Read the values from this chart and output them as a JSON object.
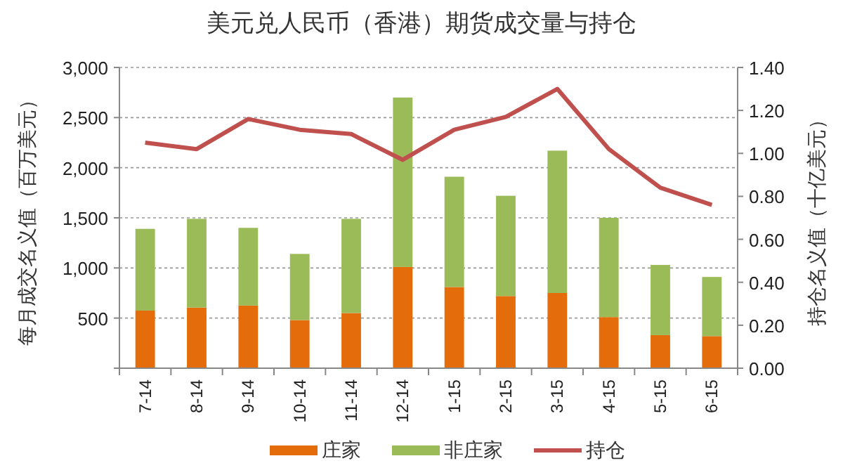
{
  "chart_data": {
    "type": "bar",
    "title": "美元兑人民币（香港）期货成交量与持仓",
    "ylabel": "每月成交名义值（百万美元）",
    "y2label": "持仓名义值（十亿美元）",
    "categories": [
      "7-14",
      "8-14",
      "9-14",
      "10-14",
      "11-14",
      "12-14",
      "1-15",
      "2-15",
      "3-15",
      "4-15",
      "5-15",
      "6-15"
    ],
    "stacked": true,
    "series": [
      {
        "name": "庄家",
        "color": "#e46c0a",
        "values": [
          575,
          605,
          625,
          480,
          550,
          1010,
          810,
          720,
          750,
          510,
          330,
          320
        ]
      },
      {
        "name": "非庄家",
        "color": "#9bbb59",
        "values": [
          815,
          885,
          775,
          660,
          940,
          1690,
          1100,
          1000,
          1420,
          990,
          700,
          590
        ]
      },
      {
        "name": "持仓",
        "color": "#c0504d",
        "type": "line",
        "axis": "y2",
        "values": [
          1.05,
          1.02,
          1.16,
          1.11,
          1.09,
          0.97,
          1.11,
          1.17,
          1.3,
          1.02,
          0.84,
          0.76
        ]
      }
    ],
    "ylim": [
      0,
      3000
    ],
    "yticks": [
      {
        "value": 0,
        "label": null
      },
      {
        "value": 500,
        "label": "500"
      },
      {
        "value": 1000,
        "label": "1,000"
      },
      {
        "value": 1500,
        "label": "1,500"
      },
      {
        "value": 2000,
        "label": "2,000"
      },
      {
        "value": 2500,
        "label": "2,500"
      },
      {
        "value": 3000,
        "label": "3,000"
      }
    ],
    "y2lim": [
      0,
      1.4
    ],
    "y2ticks": [
      {
        "value": 0,
        "label": "0.00"
      },
      {
        "value": 0.2,
        "label": "0.20"
      },
      {
        "value": 0.4,
        "label": "0.40"
      },
      {
        "value": 0.6,
        "label": "0.60"
      },
      {
        "value": 0.8,
        "label": "0.80"
      },
      {
        "value": 1.0,
        "label": "1.00"
      },
      {
        "value": 1.2,
        "label": "1.20"
      },
      {
        "value": 1.4,
        "label": "1.40"
      }
    ],
    "grid": "y",
    "legend": "bottom",
    "line_style": "solid",
    "marker": "none"
  }
}
